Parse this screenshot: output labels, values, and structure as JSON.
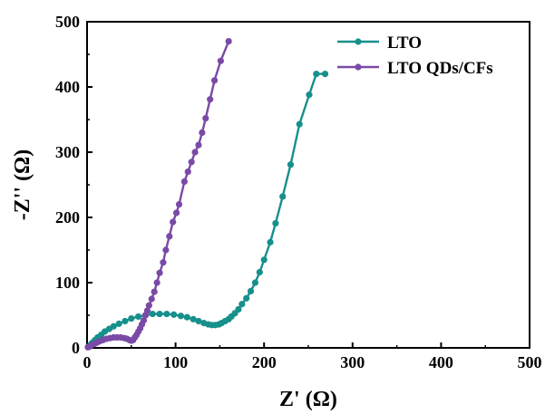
{
  "chart_data": {
    "type": "line",
    "title": "",
    "xlabel": "Z' (Ω)",
    "ylabel": "-Z'' (Ω)",
    "xlim": [
      0,
      500
    ],
    "ylim": [
      0,
      500
    ],
    "xticks": [
      0,
      100,
      200,
      300,
      400,
      500
    ],
    "yticks": [
      0,
      100,
      200,
      300,
      400,
      500
    ],
    "grid": false,
    "legend_position": "top-right",
    "series": [
      {
        "name": "LTO",
        "color": "#17908c",
        "marker": "circle",
        "x": [
          2,
          4,
          6,
          9,
          12,
          16,
          20,
          25,
          30,
          36,
          43,
          50,
          58,
          66,
          74,
          82,
          90,
          98,
          106,
          113,
          120,
          126,
          132,
          137,
          141,
          145,
          149,
          152,
          156,
          160,
          163,
          167,
          171,
          175,
          180,
          185,
          190,
          195,
          200,
          207,
          213,
          221,
          230,
          240,
          251,
          259,
          269
        ],
        "y": [
          2,
          5,
          8,
          12,
          16,
          20,
          25,
          29,
          33,
          37,
          41,
          45,
          48,
          50,
          52,
          52,
          52,
          51,
          49,
          47,
          44,
          41,
          38,
          36,
          35,
          35,
          36,
          38,
          41,
          44,
          48,
          53,
          59,
          67,
          76,
          87,
          100,
          116,
          135,
          162,
          191,
          232,
          281,
          343,
          388,
          420,
          420
        ]
      },
      {
        "name": "LTO QDs/CFs",
        "color": "#7a4aa6",
        "marker": "circle",
        "x": [
          1,
          3,
          5,
          8,
          11,
          14,
          18,
          22,
          26,
          30,
          34,
          38,
          42,
          45,
          48,
          50,
          52,
          54,
          56,
          58,
          60,
          62,
          64,
          66,
          68,
          70,
          73,
          76,
          79,
          82,
          86,
          89,
          93,
          97,
          101,
          104,
          110,
          114,
          118,
          122,
          126,
          130,
          134,
          139,
          144,
          151,
          160
        ],
        "y": [
          1,
          2,
          4,
          6,
          8,
          10,
          12,
          14,
          15,
          16,
          16,
          16,
          15,
          14,
          12,
          11,
          12,
          16,
          20,
          25,
          30,
          36,
          42,
          50,
          57,
          65,
          75,
          86,
          100,
          115,
          131,
          150,
          171,
          193,
          207,
          220,
          255,
          270,
          285,
          300,
          311,
          330,
          352,
          381,
          410,
          440,
          470
        ]
      }
    ]
  }
}
